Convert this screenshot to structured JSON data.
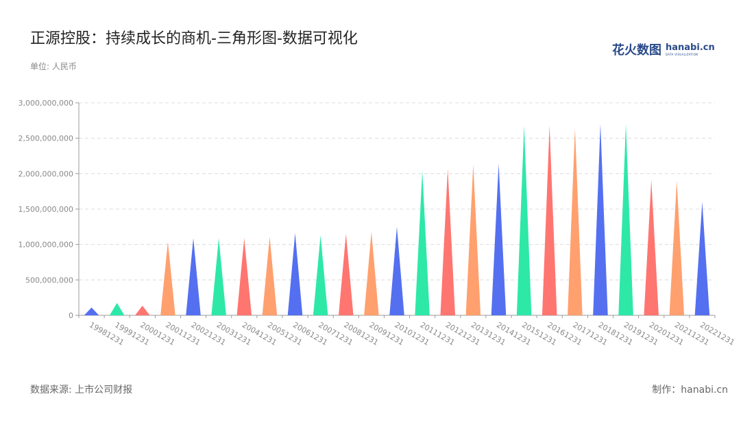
{
  "header": {
    "title": "正源控股：持续成长的商机-三角形图-数据可视化",
    "unit": "单位: 人民币"
  },
  "logo": {
    "cn": "花火数图",
    "en": "hanabi.cn",
    "en_sub": "DATA VISUALIZATION"
  },
  "footer": {
    "source": "数据来源: 上市公司财报",
    "maker": "制作：hanabi.cn"
  },
  "chart_data": {
    "type": "bar",
    "mark": "triangle",
    "title": "正源控股：持续成长的商机-三角形图-数据可视化",
    "ylabel": "",
    "xlabel": "",
    "ylim": [
      0,
      3000000000
    ],
    "yticks": [
      0,
      500000000,
      1000000000,
      1500000000,
      2000000000,
      2500000000,
      3000000000
    ],
    "ytick_labels": [
      "0",
      "500,000,000",
      "1,000,000,000",
      "1,500,000,000",
      "2,000,000,000",
      "2,500,000,000",
      "3,000,000,000"
    ],
    "grid": true,
    "categories": [
      "19981231",
      "19991231",
      "20001231",
      "20011231",
      "20021231",
      "20031231",
      "20041231",
      "20051231",
      "20061231",
      "20071231",
      "20081231",
      "20091231",
      "20101231",
      "20111231",
      "20121231",
      "20131231",
      "20141231",
      "20151231",
      "20161231",
      "20171231",
      "20181231",
      "20191231",
      "20201231",
      "20211231",
      "20221231"
    ],
    "values": [
      110000000,
      175000000,
      135000000,
      1040000000,
      1090000000,
      1090000000,
      1090000000,
      1110000000,
      1160000000,
      1130000000,
      1150000000,
      1180000000,
      1250000000,
      2040000000,
      2070000000,
      2130000000,
      2140000000,
      2680000000,
      2680000000,
      2640000000,
      2700000000,
      2700000000,
      1910000000,
      1900000000,
      1600000000
    ],
    "colors": [
      "#5470f0",
      "#2ee8a8",
      "#ff7570",
      "#ffa06e"
    ]
  }
}
